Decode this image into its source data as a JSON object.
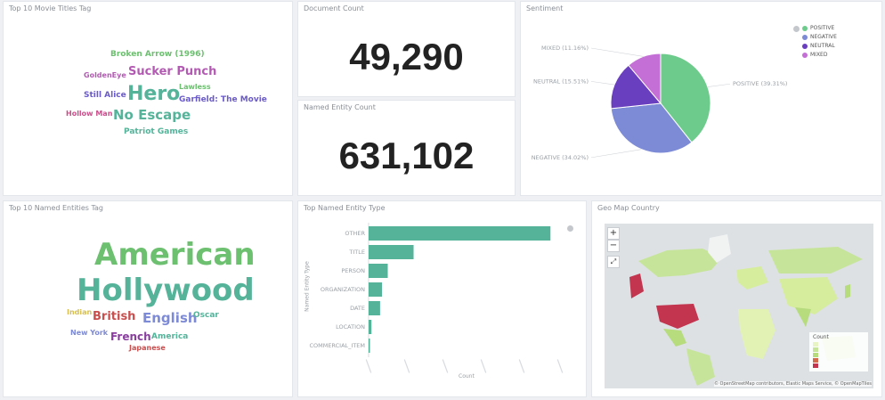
{
  "panels": {
    "movie_titles": {
      "title": "Top 10 Movie Titles Tag",
      "words": [
        {
          "text": "Broken Arrow (1996)",
          "color": "#6cc06f"
        },
        {
          "text": "Sucker Punch",
          "color": "#b35bb3"
        },
        {
          "text": "GoldenEye",
          "color": "#b35bb3"
        },
        {
          "text": "Hero",
          "color": "#54b399"
        },
        {
          "text": "Lawless",
          "color": "#6cc06f"
        },
        {
          "text": "Still Alice",
          "color": "#6a5bc9"
        },
        {
          "text": "Garfield: The Movie",
          "color": "#6a5bc9"
        },
        {
          "text": "Hollow Man",
          "color": "#c94f8a"
        },
        {
          "text": "No Escape",
          "color": "#54b399"
        },
        {
          "text": "Patriot Games",
          "color": "#54b399"
        }
      ]
    },
    "document_count": {
      "title": "Document Count",
      "value": "49,290"
    },
    "named_entity_count": {
      "title": "Named Entity Count",
      "value": "631,102"
    },
    "sentiment": {
      "title": "Sentiment",
      "legend": [
        "POSITIVE",
        "NEGATIVE",
        "NEUTRAL",
        "MIXED"
      ],
      "slice_labels": [
        "POSITIVE (39.31%)",
        "NEGATIVE (34.02%)",
        "NEUTRAL (15.51%)",
        "MIXED (11.16%)"
      ]
    },
    "entities": {
      "title": "Top 10 Named Entities Tag",
      "words": [
        {
          "text": "American",
          "color": "#6cc06f"
        },
        {
          "text": "Hollywood",
          "color": "#54b399"
        },
        {
          "text": "Indian",
          "color": "#d6bf57"
        },
        {
          "text": "British",
          "color": "#c94f4f"
        },
        {
          "text": "English",
          "color": "#7d8ad6"
        },
        {
          "text": "Oscar",
          "color": "#54b399"
        },
        {
          "text": "New York",
          "color": "#7d8ad6"
        },
        {
          "text": "French",
          "color": "#8a3fa0"
        },
        {
          "text": "America",
          "color": "#54b399"
        },
        {
          "text": "Japanese",
          "color": "#c94f4f"
        }
      ]
    },
    "entity_types": {
      "title": "Top Named Entity Type",
      "y_axis_title": "Named Entity Type",
      "x_axis_title": "Count"
    },
    "geo": {
      "title": "Geo Map Country",
      "legend_title": "Count",
      "attribution": "© OpenStreetMap contributors, Elastic Maps Service, © OpenMapTiles"
    }
  },
  "chart_data": [
    {
      "type": "pie",
      "title": "Sentiment",
      "categories": [
        "POSITIVE",
        "NEGATIVE",
        "NEUTRAL",
        "MIXED"
      ],
      "values": [
        39.31,
        34.02,
        15.51,
        11.16
      ],
      "colors": [
        "#6dcc8b",
        "#7d8ad6",
        "#6a3fbf",
        "#c46fd6"
      ],
      "legend": "top-right"
    },
    {
      "type": "bar",
      "orientation": "horizontal",
      "title": "Top Named Entity Type",
      "categories": [
        "OTHER",
        "TITLE",
        "PERSON",
        "ORGANIZATION",
        "DATE",
        "LOCATION",
        "COMMERCIAL_ITEM"
      ],
      "values": [
        190000,
        47000,
        20000,
        14000,
        12000,
        3000,
        800
      ],
      "color": "#54b399",
      "ylabel": "Named Entity Type",
      "xlabel": "Count"
    }
  ],
  "icons": {
    "zoom_in": "+",
    "zoom_out": "−",
    "fit": "⤢"
  }
}
